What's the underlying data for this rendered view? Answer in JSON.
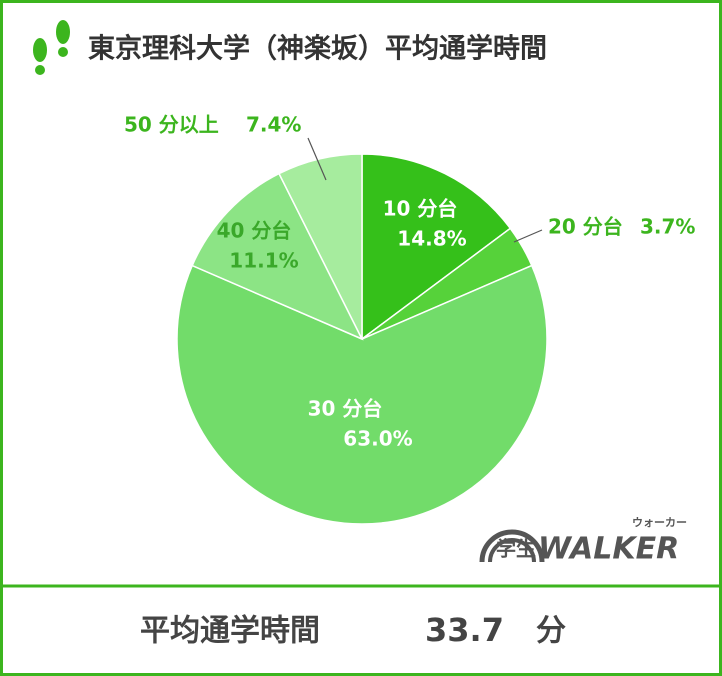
{
  "chart_data": {
    "type": "pie",
    "title": "東京理科大学（神楽坂）平均通学時間",
    "categories": [
      "10 分台",
      "20 分台",
      "30 分台",
      "40 分台",
      "50 分以上"
    ],
    "values": [
      14.8,
      3.7,
      63.0,
      11.1,
      7.4
    ],
    "value_labels": [
      "14.8%",
      "3.7%",
      "63.0%",
      "11.1%",
      "7.4%"
    ],
    "colors": [
      "#35c01a",
      "#56d23a",
      "#72dc6a",
      "#8ce485",
      "#a6ec9e"
    ]
  },
  "footer": {
    "label": "平均通学時間",
    "value": "33.7",
    "unit": "分"
  },
  "logo": {
    "prefix": "学生",
    "name": "WALKER",
    "reading": "ウォーカー"
  }
}
